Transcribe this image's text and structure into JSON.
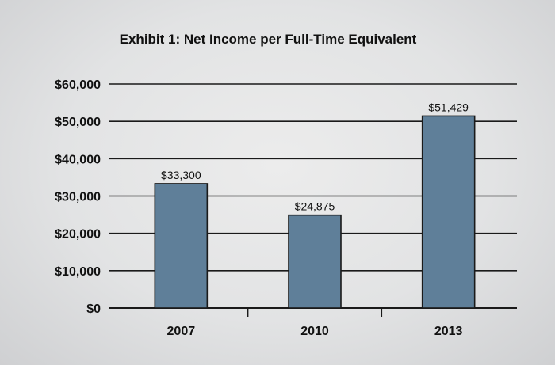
{
  "chart_data": {
    "type": "bar",
    "title": "Exhibit 1: Net Income per Full-Time Equivalent",
    "xlabel": "",
    "ylabel": "",
    "categories": [
      "2007",
      "2010",
      "2013"
    ],
    "values": [
      33300,
      24875,
      51429
    ],
    "data_labels": [
      "$33,300",
      "$24,875",
      "$51,429"
    ],
    "ylim": [
      0,
      60000
    ],
    "yticks": [
      0,
      10000,
      20000,
      30000,
      40000,
      50000,
      60000
    ],
    "ytick_labels": [
      "$0",
      "$10,000",
      "$20,000",
      "$30,000",
      "$40,000",
      "$50,000",
      "$60,000"
    ],
    "grid": true,
    "legend": "none",
    "bar_color": "#5f7f99",
    "bar_edge_color": "#1a1a1a",
    "background_color": "#e3e4e5"
  }
}
